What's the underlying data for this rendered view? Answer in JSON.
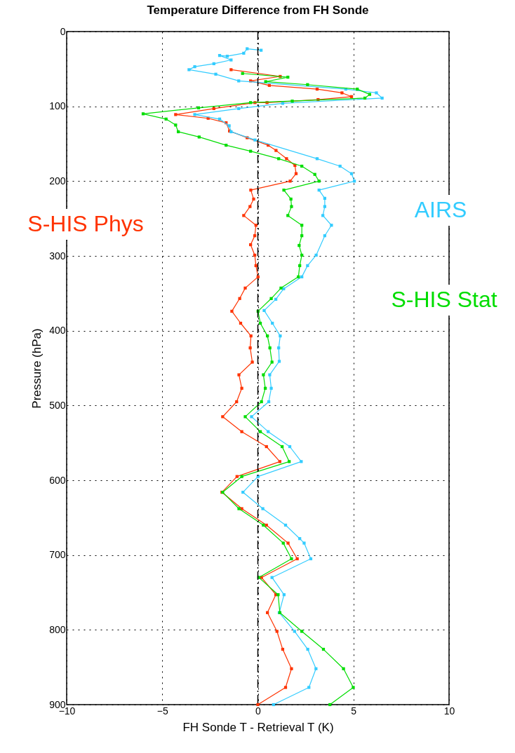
{
  "chart_data": {
    "type": "line",
    "title": "Temperature Difference from FH Sonde",
    "xlabel": "FH Sonde T - Retrieval T (K)",
    "ylabel": "Pressure (hPa)",
    "xlim": [
      -10,
      10
    ],
    "xticks": [
      -10,
      -5,
      0,
      5,
      10
    ],
    "ylim": [
      900,
      0
    ],
    "yticks": [
      0,
      100,
      200,
      300,
      400,
      500,
      600,
      700,
      800,
      900
    ],
    "grid": true,
    "legend": false,
    "marker": "square",
    "line_style": "solid",
    "ref_lines": [
      {
        "axis": "x",
        "value": 0,
        "color": "#000000",
        "line_style": "dashed"
      }
    ],
    "series": [
      {
        "name": "S-HIS Phys",
        "color": "#ff3300",
        "x": [
          -1.4,
          1.17,
          -0.38,
          0.6,
          3.1,
          4.4,
          4.9,
          3.15,
          0.48,
          -0.15,
          -2.3,
          -4.3,
          -2.6,
          -1.66,
          -1.48,
          -0.56,
          0.54,
          0.95,
          1.5,
          1.94,
          2.0,
          1.69,
          -0.37,
          -0.22,
          -0.41,
          -0.74,
          -0.1,
          -0.16,
          -0.38,
          -0.16,
          -0.1,
          0.01,
          -0.66,
          -0.95,
          -1.36,
          -0.9,
          -0.36,
          -0.4,
          -0.29,
          -0.99,
          -0.84,
          -1.11,
          -1.84,
          -0.84,
          0.45,
          1.15,
          -1.09,
          -1.88,
          -0.84,
          0.45,
          1.58,
          2.06,
          0.19,
          0.94,
          0.5,
          1.0,
          1.3,
          1.76,
          1.45,
          0.0
        ],
        "values": [
          51,
          60,
          66,
          72,
          77,
          82,
          87,
          91,
          95,
          95,
          103,
          111,
          116,
          122,
          133,
          142,
          152,
          159,
          170,
          179,
          190,
          200,
          212,
          224,
          234,
          246,
          259,
          273,
          285,
          299,
          313,
          328,
          343,
          357,
          374,
          390,
          407,
          423,
          442,
          459,
          477,
          495,
          515,
          535,
          555,
          575,
          595,
          616,
          638,
          660,
          684,
          705,
          730,
          753,
          777,
          802,
          826,
          852,
          877,
          900
        ]
      },
      {
        "name": "AIRS",
        "color": "#33ccff",
        "x": [
          0.17,
          -0.56,
          -0.74,
          -1.6,
          -2.0,
          -1.4,
          -2.3,
          -3.3,
          -3.6,
          -2.2,
          -1.0,
          4.6,
          6.2,
          6.5,
          1.3,
          -1.0,
          -3.3,
          -2.0,
          -1.5,
          -1.4,
          -0.15,
          3.1,
          4.3,
          4.9,
          5.05,
          3.2,
          3.5,
          3.5,
          3.4,
          3.85,
          3.5,
          3.05,
          2.6,
          2.3,
          1.35,
          0.94,
          0.33,
          0.76,
          1.17,
          1.09,
          1.12,
          0.62,
          0.7,
          0.57,
          -0.33,
          0.54,
          1.67,
          2.27,
          0.01,
          -0.78,
          0.26,
          1.45,
          2.19,
          2.42,
          2.77,
          0.74,
          1.37,
          1.12,
          1.92,
          2.61,
          3.04,
          2.67,
          0.82
        ],
        "values": [
          25,
          23,
          29,
          33,
          32,
          38,
          43,
          47,
          51,
          57,
          66,
          77,
          82,
          89,
          96,
          103,
          111,
          117,
          126,
          134,
          145,
          170,
          180,
          190,
          200,
          212,
          223,
          234,
          246,
          259,
          273,
          299,
          313,
          328,
          344,
          358,
          373,
          390,
          407,
          423,
          441,
          459,
          477,
          495,
          515,
          535,
          555,
          575,
          595,
          616,
          638,
          660,
          678,
          684,
          705,
          730,
          753,
          777,
          802,
          826,
          852,
          877,
          900
        ]
      },
      {
        "name": "S-HIS Stat",
        "color": "#00dd00",
        "x": [
          -0.8,
          1.57,
          0.41,
          2.6,
          5.2,
          5.85,
          5.6,
          1.8,
          -0.38,
          -3.1,
          -6.0,
          -4.8,
          -4.3,
          -4.16,
          -3.07,
          -1.66,
          -0.38,
          1.09,
          2.3,
          2.98,
          3.2,
          1.36,
          1.73,
          1.76,
          1.57,
          2.3,
          2.3,
          2.16,
          2.3,
          2.19,
          2.12,
          1.21,
          0.7,
          0.01,
          0.13,
          0.5,
          0.63,
          0.74,
          0.29,
          0.39,
          0.19,
          -0.66,
          0.13,
          1.27,
          1.64,
          -0.84,
          -1.84,
          -0.99,
          0.29,
          1.33,
          1.76,
          0.05,
          1.06,
          1.15,
          2.3,
          3.43,
          4.48,
          4.99,
          3.77
        ],
        "values": [
          56,
          61,
          67,
          71,
          77,
          84,
          89,
          93,
          95,
          102,
          110,
          117,
          125,
          134,
          141,
          152,
          160,
          170,
          180,
          191,
          200,
          212,
          224,
          234,
          246,
          259,
          273,
          286,
          299,
          313,
          328,
          343,
          357,
          374,
          390,
          407,
          423,
          442,
          459,
          477,
          495,
          515,
          535,
          555,
          575,
          595,
          616,
          638,
          660,
          684,
          705,
          730,
          753,
          777,
          802,
          826,
          852,
          877,
          900
        ]
      }
    ]
  }
}
